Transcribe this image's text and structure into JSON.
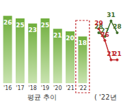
{
  "chart_data": [
    {
      "type": "bar",
      "title": "평균 추이",
      "categories": [
        "'16",
        "'17",
        "'18",
        "'19",
        "'20",
        "'21",
        "'22"
      ],
      "values": [
        26,
        25,
        23,
        25,
        21,
        20,
        18
      ],
      "color": "#6fae3c",
      "ylim": [
        0,
        30
      ],
      "grid": false,
      "data_labels": true,
      "tick_labels": "x"
    },
    {
      "type": "line",
      "title": "( '22년",
      "categories": [
        null,
        null,
        null,
        null
      ],
      "series": [
        {
          "name": null,
          "color": "#3f6f2a",
          "values": [
            28,
            27,
            31,
            28
          ],
          "marker": "circle"
        },
        {
          "name": null,
          "color": "#c0282d",
          "values": [
            29,
            26,
            21,
            21
          ],
          "marker": "circle"
        }
      ],
      "ylim": [
        15,
        35
      ],
      "grid": false,
      "data_labels": true,
      "tick_labels": false
    }
  ]
}
